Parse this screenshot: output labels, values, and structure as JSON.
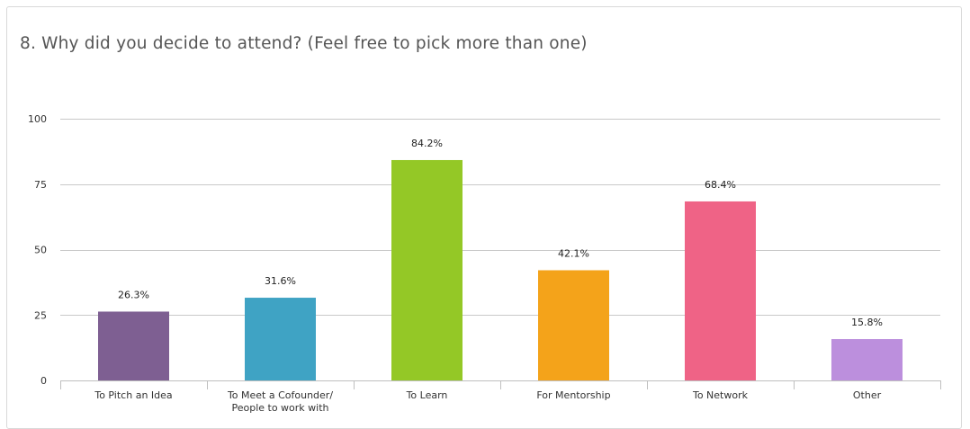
{
  "question": {
    "title": "8. Why did you decide to attend? (Feel free to pick more than one)"
  },
  "chart_data": {
    "type": "bar",
    "categories": [
      [
        "To Pitch an Idea"
      ],
      [
        "To Meet a Cofounder/",
        "People to work with"
      ],
      [
        "To Learn"
      ],
      [
        "For Mentorship"
      ],
      [
        "To Network"
      ],
      [
        "Other"
      ]
    ],
    "values": [
      26.3,
      31.6,
      84.2,
      42.1,
      68.4,
      15.8
    ],
    "data_labels": [
      "26.3%",
      "31.6%",
      "84.2%",
      "42.1%",
      "68.4%",
      "15.8%"
    ],
    "colors": [
      "#7e5f92",
      "#3fa3c4",
      "#94c826",
      "#f4a31a",
      "#ef6386",
      "#bc8fdd"
    ],
    "yticks": [
      0,
      25,
      50,
      75,
      100
    ],
    "ylim": [
      0,
      100
    ],
    "grid": true,
    "legend": false
  }
}
